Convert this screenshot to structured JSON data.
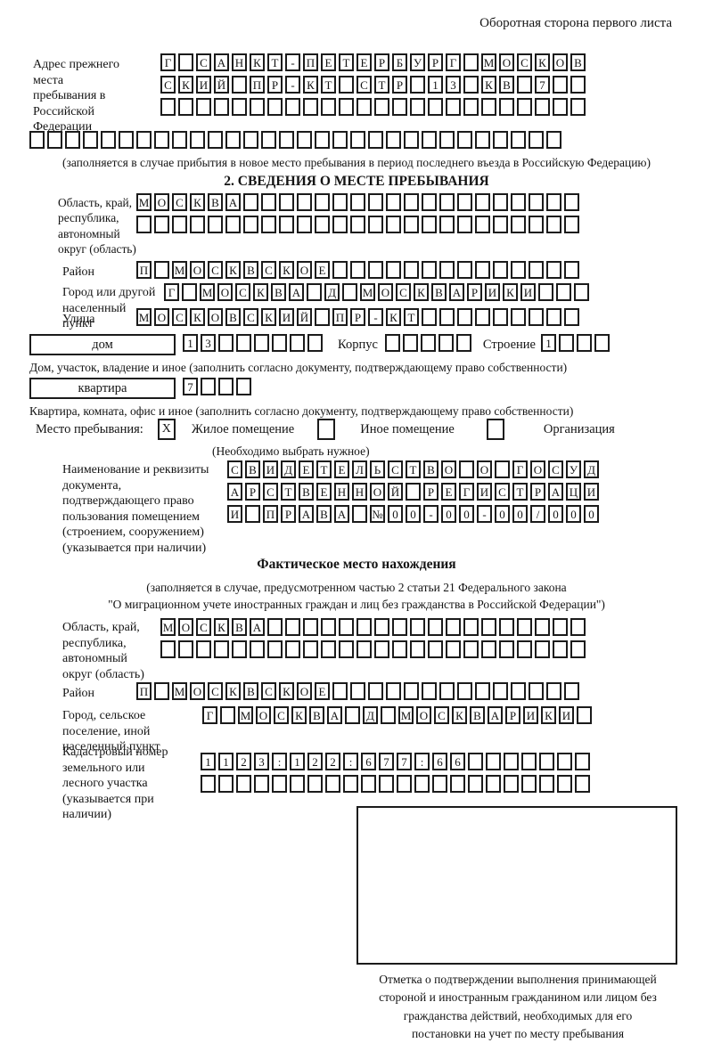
{
  "page": {
    "corner_note": "Оборотная сторона первого листа"
  },
  "prev_address": {
    "label": "Адрес прежнего места пребывания в Российской Федерации",
    "row1": {
      "count": 24,
      "chars": "Г САНКТ-ПЕТЕРБУРГ МОСКОВ"
    },
    "row2": {
      "count": 24,
      "chars": "СКИЙ ПР-КТ СТР 13 КВ 7"
    },
    "row3": {
      "count": 24,
      "chars": ""
    },
    "row4": {
      "count": 30,
      "chars": ""
    },
    "note": "(заполняется в случае прибытия в новое место пребывания в период последнего въезда в Российскую Федерацию)"
  },
  "section2": {
    "title": "2. СВЕДЕНИЯ О МЕСТЕ ПРЕБЫВАНИЯ",
    "region": {
      "label": "Область, край, республика, автономный округ (область)",
      "row1": {
        "count": 25,
        "chars": "МОСКВА"
      },
      "row2": {
        "count": 25,
        "chars": ""
      }
    },
    "district": {
      "label": "Район",
      "row": {
        "count": 25,
        "chars": "П МОСКВСКОЕ"
      }
    },
    "city": {
      "label": "Город или другой населенный пункт",
      "row": {
        "count": 24,
        "chars": "Г МОСКВА Д МОСКВАРИКИ"
      }
    },
    "street": {
      "label": "Улица",
      "row": {
        "count": 25,
        "chars": "МОСКОВСКИЙ ПР-КТ"
      }
    },
    "house": {
      "label": "дом",
      "row": {
        "count": 8,
        "chars": "13"
      },
      "korpus_label": "Корпус",
      "korpus_row": {
        "count": 5,
        "chars": ""
      },
      "stroenie_label": "Строение",
      "stroenie_row": {
        "count": 4,
        "chars": "1"
      },
      "note": "Дом, участок, владение и иное (заполнить согласно документу, подтверждающему право собственности)"
    },
    "apartment": {
      "label": "квартира",
      "row": {
        "count": 4,
        "chars": "7"
      },
      "note": "Квартира, комната, офис и иное (заполнить согласно документу, подтверждающему право собственности)"
    },
    "stay": {
      "label": "Место пребывания:",
      "opt1": {
        "label": "Жилое помещение",
        "mark": "X"
      },
      "opt2": {
        "label": "Иное помещение",
        "mark": ""
      },
      "opt3": {
        "label": "Организация",
        "mark": ""
      },
      "note": "(Необходимо выбрать нужное)"
    },
    "doc": {
      "label": "Наименование и реквизиты документа, подтверждающего право пользования помещением (строением, сооружением) (указывается при наличии)",
      "row1": {
        "count": 21,
        "chars": "СВИДЕТЕЛЬСТВО О ГОСУД"
      },
      "row2": {
        "count": 21,
        "chars": "АРСТВЕННОЙ РЕГИСТРАЦИ"
      },
      "row3": {
        "count": 21,
        "chars": "И ПРАВА №00-00-00/000"
      }
    }
  },
  "fact": {
    "title": "Фактическое место нахождения",
    "note1": "(заполняется в случае, предусмотренном частью 2 статьи 21 Федерального закона",
    "note2": "\"О миграционном учете иностранных граждан и лиц без гражданства в Российской Федерации\")",
    "region": {
      "label": "Область, край, республика, автономный округ (область)",
      "row1": {
        "count": 24,
        "chars": "МОСКВА"
      },
      "row2": {
        "count": 24,
        "chars": ""
      }
    },
    "district": {
      "label": "Район",
      "row": {
        "count": 25,
        "chars": "П МОСКВСКОЕ"
      }
    },
    "city": {
      "label": "Город, сельское поселение, иной населенный пункт",
      "row": {
        "count": 22,
        "chars": "Г МОСКВА Д МОСКВАРИКИ"
      }
    },
    "cadastre": {
      "label": "Кадастровый номер земельного или лесного участка (указывается при наличии)",
      "row1": {
        "count": 22,
        "chars": "1123:122:677:66"
      },
      "row2": {
        "count": 22,
        "chars": ""
      }
    },
    "mark_note": "Отметка о подтверждении выполнения принимающей стороной и иностранным гражданином или лицом без гражданства действий, необходимых для его постановки на учет по месту пребывания"
  }
}
